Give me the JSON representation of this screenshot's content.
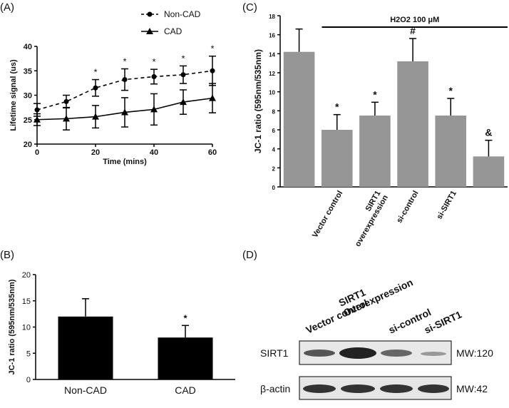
{
  "chart_data": [
    {
      "type": "line",
      "label": "(A)",
      "x_label": "Time (mins)",
      "y_label": "Lifetime signal (us)",
      "xlim": [
        0,
        60
      ],
      "xticks": [
        0,
        20,
        40,
        60
      ],
      "ylim": [
        20,
        40
      ],
      "yticks": [
        20,
        25,
        30,
        35,
        40
      ],
      "x": [
        0,
        10,
        20,
        30,
        40,
        50,
        60
      ],
      "series": [
        {
          "name": "Non-CAD",
          "color": "#000000",
          "line_style": "dashed",
          "marker": "circle",
          "values": [
            27,
            28.7,
            31.5,
            33.2,
            33.8,
            34.2,
            35
          ],
          "errors": [
            1.3,
            1.3,
            1.7,
            2.2,
            1.5,
            1.8,
            3
          ]
        },
        {
          "name": "CAD",
          "color": "#000000",
          "line_style": "solid",
          "marker": "triangle",
          "values": [
            25,
            25.2,
            25.6,
            26.5,
            27.1,
            28.6,
            29.4
          ],
          "errors": [
            1.2,
            2.3,
            2.3,
            3,
            3.2,
            2.5,
            3
          ]
        }
      ],
      "annotations": [
        {
          "text": "*",
          "x": 20
        },
        {
          "text": "*",
          "x": 30
        },
        {
          "text": "*",
          "x": 40
        },
        {
          "text": "*",
          "x": 50
        },
        {
          "text": "*",
          "x": 60
        }
      ]
    },
    {
      "type": "bar",
      "label": "(B)",
      "y_label": "JC-1 ratio (595nm/535nm)",
      "color": "#000000",
      "categories": [
        "Non-CAD",
        "CAD"
      ],
      "values": [
        12,
        8
      ],
      "errors": [
        3.4,
        2.3
      ],
      "bar_labels": [
        null,
        "*"
      ],
      "ylim": [
        0,
        20
      ],
      "yticks": [
        0,
        5,
        10,
        15,
        20
      ]
    },
    {
      "type": "bar",
      "label": "(C)",
      "y_label": "JC-1 ratio (595nm/535nm)",
      "color": "#969696",
      "treatment_label": "H2O2 100 μM",
      "categories": [
        null,
        "Vector control",
        "SIRT1\noverexpression",
        "si-control",
        "si-SIRT1",
        null
      ],
      "values": [
        14.2,
        6,
        7.5,
        13.2,
        7.5,
        3.2
      ],
      "errors": [
        2.4,
        1.6,
        1.4,
        2.4,
        1.8,
        1.7
      ],
      "bar_labels": [
        null,
        "*",
        "*",
        "#",
        "*",
        "&"
      ],
      "ylim": [
        0,
        18
      ],
      "yticks": [
        0,
        2,
        4,
        6,
        8,
        10,
        12,
        14,
        16,
        18
      ]
    }
  ],
  "blot": {
    "label": "(D)",
    "lanes": [
      "Vector control",
      "SIRT1\nOverexpression",
      "si-control",
      "si-SIRT1"
    ],
    "rows": [
      {
        "name": "SIRT1",
        "mw": "MW:120"
      },
      {
        "name": "β-actin",
        "mw": "MW:42"
      }
    ]
  }
}
